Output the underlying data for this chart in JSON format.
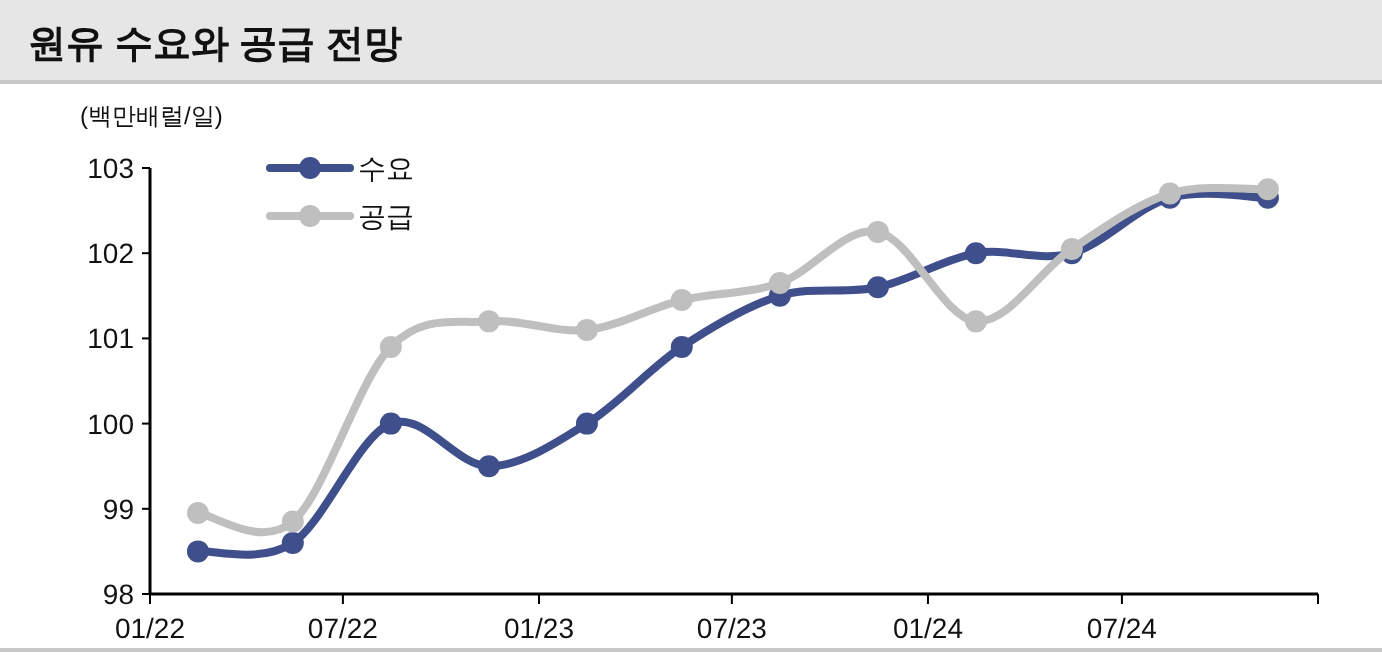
{
  "chart_data": {
    "type": "line",
    "title": "원유 수요와 공급 전망",
    "ylabel": "(백만배럴/일)",
    "x": [
      "2022-02-15",
      "2022-05-15",
      "2022-08-15",
      "2022-11-15",
      "2023-02-15",
      "2023-05-15",
      "2023-08-15",
      "2023-11-15",
      "2024-02-15",
      "2024-05-15",
      "2024-08-15",
      "2024-11-15"
    ],
    "series": [
      {
        "name": "수요",
        "color": "#3f4f8c",
        "values": [
          98.5,
          98.6,
          100.0,
          99.5,
          100.0,
          100.9,
          101.5,
          101.6,
          102.0,
          102.0,
          102.65,
          102.65
        ]
      },
      {
        "name": "공급",
        "color": "#bfbfbf",
        "values": [
          98.95,
          98.85,
          100.9,
          101.2,
          101.1,
          101.45,
          101.65,
          102.25,
          101.2,
          102.05,
          102.7,
          102.75
        ]
      }
    ],
    "xlim": [
      "2022-01-01",
      "2025-01-01"
    ],
    "xticks": [
      {
        "value": "2022-01-01",
        "label": "01/22"
      },
      {
        "value": "2022-07-01",
        "label": "07/22"
      },
      {
        "value": "2023-01-01",
        "label": "01/23"
      },
      {
        "value": "2023-07-01",
        "label": "07/23"
      },
      {
        "value": "2024-01-01",
        "label": "01/24"
      },
      {
        "value": "2024-07-01",
        "label": "07/24"
      },
      {
        "value": "2025-01-01",
        "label": null
      }
    ],
    "ylim": [
      98,
      103
    ],
    "yticks": [
      98,
      99,
      100,
      101,
      102,
      103
    ],
    "legend": "top left",
    "marker": "circle",
    "line_style": "solid",
    "grid": false
  }
}
